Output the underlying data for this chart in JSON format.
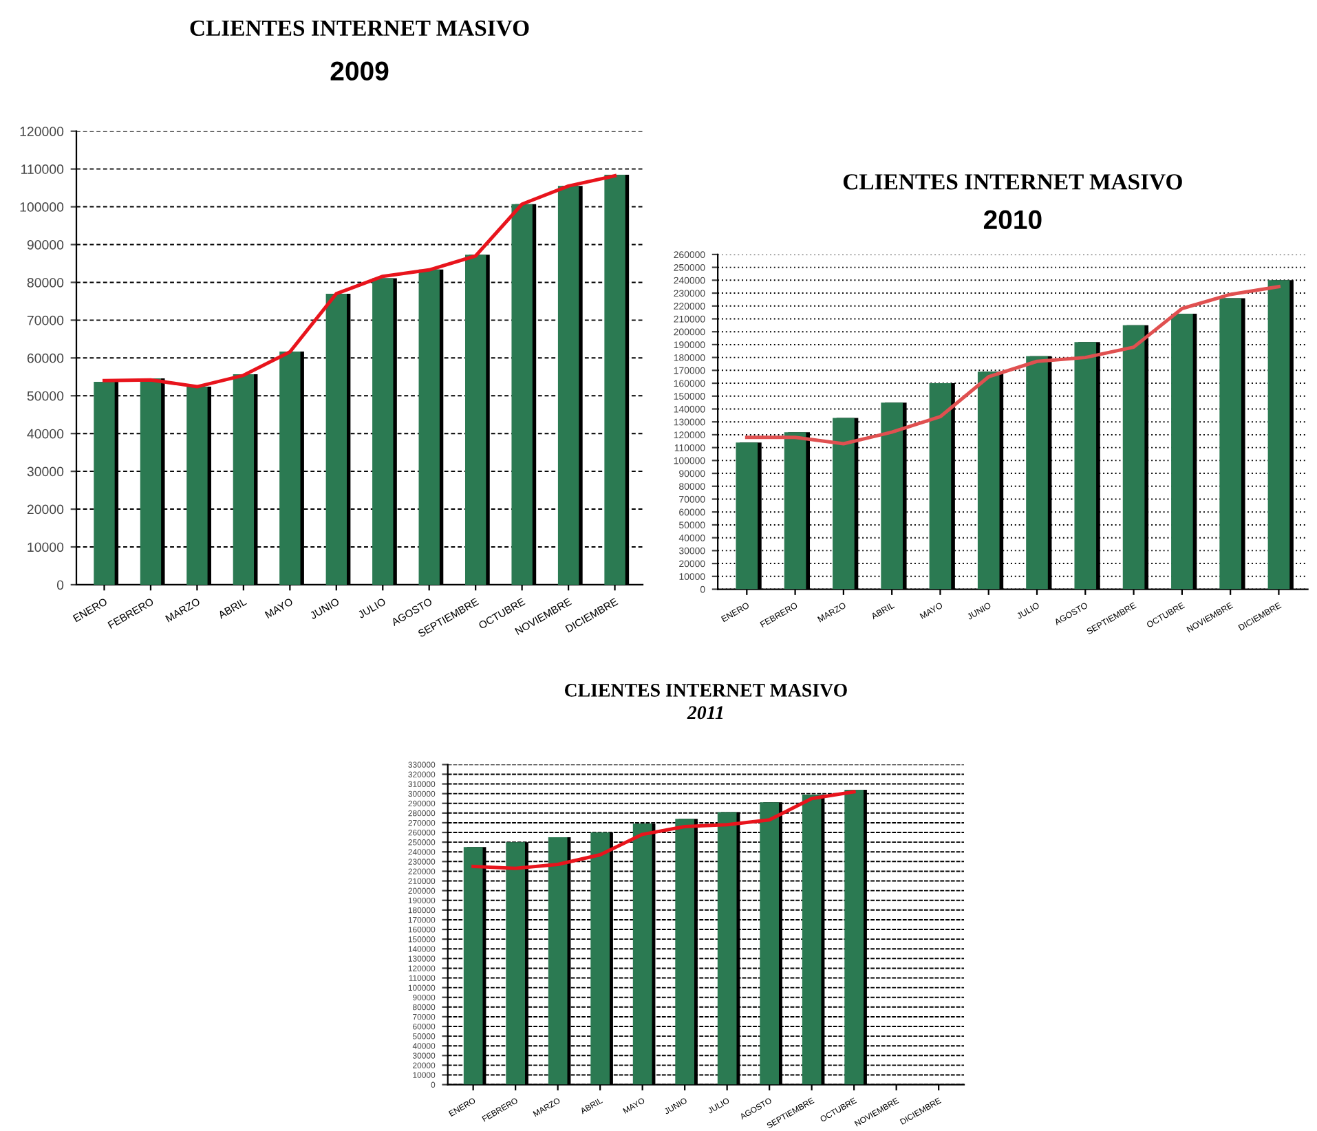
{
  "chart_data": [
    {
      "type": "bar",
      "title": "CLIENTES INTERNET MASIVO",
      "subtitle": "2009",
      "categories": [
        "ENERO",
        "FEBRERO",
        "MARZO",
        "ABRIL",
        "MAYO",
        "JUNIO",
        "JULIO",
        "AGOSTO",
        "SEPTIEMBRE",
        "OCTUBRE",
        "NOVIEMBRE",
        "DICIEMBRE"
      ],
      "series": [
        {
          "color": "#2b7a52",
          "values": [
            53700,
            54600,
            52400,
            55700,
            61700,
            77000,
            81100,
            83400,
            87300,
            100700,
            105500,
            108500
          ]
        },
        {
          "type": "line",
          "color": "#e8141c",
          "values": [
            54000,
            54200,
            52400,
            55400,
            61600,
            77000,
            81600,
            83300,
            87000,
            100700,
            105500,
            108200
          ]
        }
      ],
      "ylim": [
        0,
        120000
      ],
      "yticks": [
        0,
        10000,
        20000,
        30000,
        40000,
        50000,
        60000,
        70000,
        80000,
        90000,
        100000,
        110000,
        120000
      ],
      "grid": "y",
      "marker": "none"
    },
    {
      "type": "bar",
      "title": "CLIENTES INTERNET MASIVO",
      "subtitle": "2010",
      "categories": [
        "ENERO",
        "FEBRERO",
        "MARZO",
        "ABRIL",
        "MAYO",
        "JUNIO",
        "JULIO",
        "AGOSTO",
        "SEPTIEMBRE",
        "OCTUBRE",
        "NOVIEMBRE",
        "DICIEMBRE"
      ],
      "series": [
        {
          "color": "#2b7a52",
          "values": [
            114000,
            122000,
            133000,
            145000,
            160000,
            169000,
            181000,
            192000,
            205000,
            214000,
            226000,
            240000
          ]
        },
        {
          "type": "line",
          "color": "#e05050",
          "values": [
            118000,
            118000,
            113000,
            122000,
            134000,
            165000,
            177000,
            180000,
            188000,
            218000,
            229000,
            235000
          ]
        }
      ],
      "ylim": [
        0,
        260000
      ],
      "yticks": [
        0,
        10000,
        20000,
        30000,
        40000,
        50000,
        60000,
        70000,
        80000,
        90000,
        100000,
        110000,
        120000,
        130000,
        140000,
        150000,
        160000,
        170000,
        180000,
        190000,
        200000,
        210000,
        220000,
        230000,
        240000,
        250000,
        260000
      ],
      "grid": "y",
      "marker": "none"
    },
    {
      "type": "bar",
      "title": "CLIENTES INTERNET MASIVO",
      "subtitle": "2011",
      "categories": [
        "ENERO",
        "FEBRERO",
        "MARZO",
        "ABRIL",
        "MAYO",
        "JUNIO",
        "JULIO",
        "AGOSTO",
        "SEPTIEMBRE",
        "OCTUBRE",
        "NOVIEMBRE",
        "DICIEMBRE"
      ],
      "series": [
        {
          "color": "#2b7a52",
          "values": [
            245000,
            250000,
            255000,
            260000,
            269000,
            274000,
            281000,
            291000,
            299000,
            304000,
            null,
            null
          ]
        },
        {
          "type": "line",
          "color": "#e8141c",
          "values": [
            225000,
            223000,
            227000,
            237000,
            258000,
            266000,
            268000,
            273000,
            295000,
            302000,
            null,
            null
          ]
        }
      ],
      "ylim": [
        0,
        330000
      ],
      "yticks": [
        0,
        10000,
        20000,
        30000,
        40000,
        50000,
        60000,
        70000,
        80000,
        90000,
        100000,
        110000,
        120000,
        130000,
        140000,
        150000,
        160000,
        170000,
        180000,
        190000,
        200000,
        210000,
        220000,
        230000,
        240000,
        250000,
        260000,
        270000,
        280000,
        290000,
        300000,
        310000,
        320000,
        330000
      ],
      "grid": "y",
      "marker": "none"
    }
  ]
}
